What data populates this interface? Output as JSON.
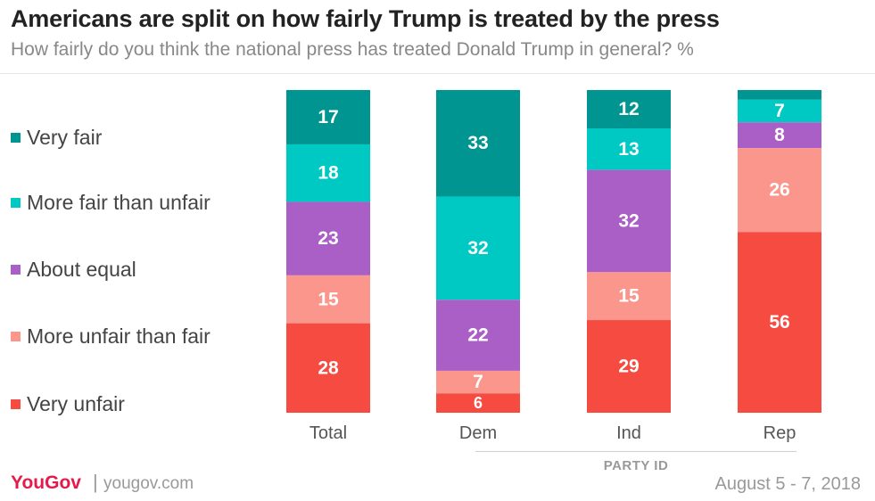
{
  "header": {
    "title": "Americans are split on how fairly Trump is treated by the press",
    "subtitle": "How fairly do you think the national press has treated Donald Trump in general? %"
  },
  "footer": {
    "brand": "YouGov",
    "separator": "|",
    "site": "yougov.com",
    "date": "August 5 - 7, 2018"
  },
  "colors": {
    "very_fair": "#009590",
    "more_fair": "#00c9c4",
    "about_equal": "#a95fc5",
    "more_unfair": "#fa968c",
    "very_unfair": "#f54b40"
  },
  "chart_data": {
    "type": "bar",
    "stacked": true,
    "orientation": "vertical",
    "categories": [
      "Total",
      "Dem",
      "Ind",
      "Rep"
    ],
    "group_label": "PARTY ID",
    "group_categories": [
      "Dem",
      "Ind",
      "Rep"
    ],
    "legend_position": "left",
    "grid": false,
    "series": [
      {
        "name": "Very fair",
        "color": "#009590",
        "values": [
          17,
          33,
          12,
          3
        ],
        "labels": [
          "17",
          "33",
          "12",
          ""
        ]
      },
      {
        "name": "More fair than unfair",
        "color": "#00c9c4",
        "values": [
          18,
          32,
          13,
          7
        ],
        "labels": [
          "18",
          "32",
          "13",
          "7"
        ]
      },
      {
        "name": "About equal",
        "color": "#a95fc5",
        "values": [
          23,
          22,
          32,
          8
        ],
        "labels": [
          "23",
          "22",
          "32",
          "8"
        ]
      },
      {
        "name": "More unfair than fair",
        "color": "#fa968c",
        "values": [
          15,
          7,
          15,
          26
        ],
        "labels": [
          "15",
          "7",
          "15",
          "26"
        ]
      },
      {
        "name": "Very unfair",
        "color": "#f54b40",
        "values": [
          28,
          6,
          29,
          56
        ],
        "labels": [
          "28",
          "6",
          "29",
          "56"
        ]
      }
    ]
  }
}
